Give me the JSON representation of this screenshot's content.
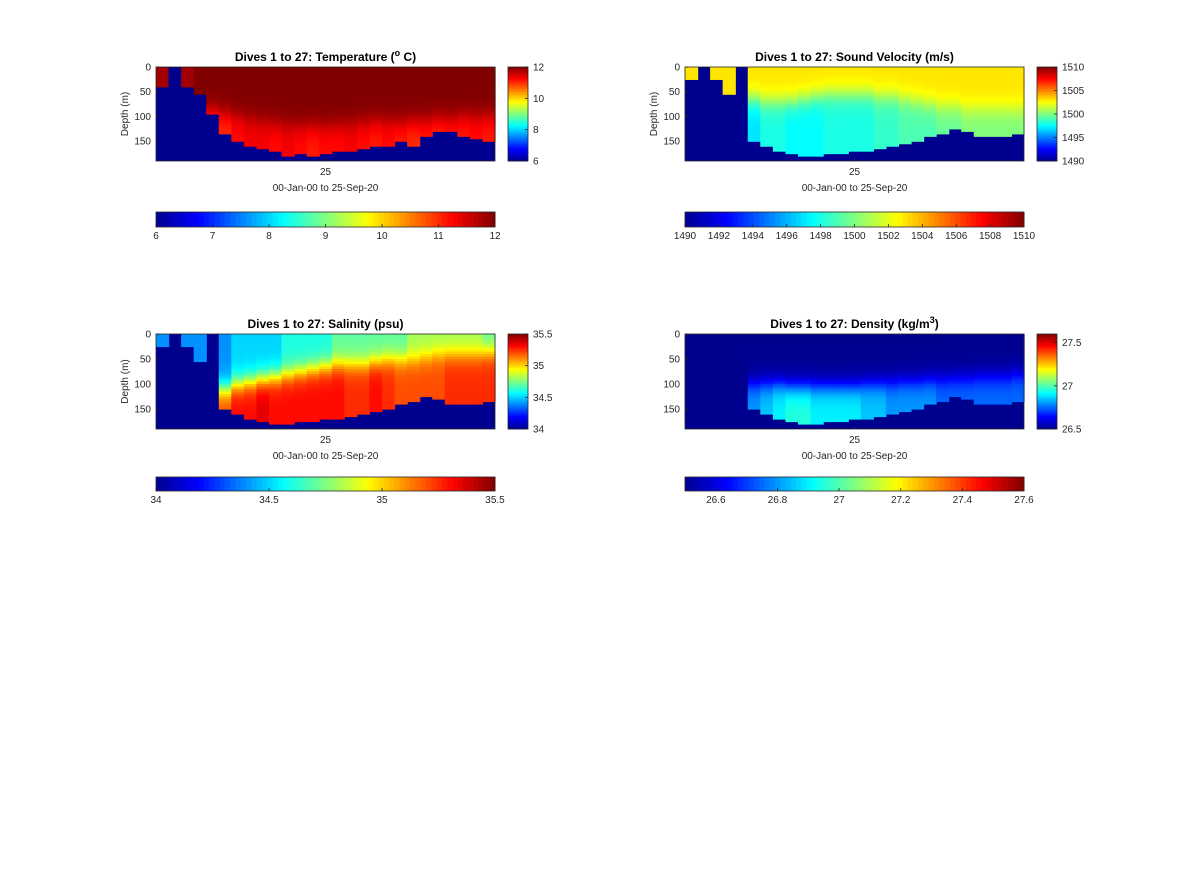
{
  "figure": {
    "x_tick_label": "25",
    "colormap": "jet",
    "colormap_colors": [
      "#00008f",
      "#0000ff",
      "#0080ff",
      "#00ffff",
      "#80ff80",
      "#ffff00",
      "#ff8000",
      "#ff0000",
      "#800000"
    ],
    "background": "#ffffff"
  },
  "chart_data": [
    {
      "id": "temperature",
      "type": "heatmap",
      "title_main": "Dives 1 to 27: Temperature (",
      "title_sup": "o",
      "title_tail": " C)",
      "xlabel": "00-Jan-00 to 25-Sep-20",
      "ylabel": "Depth (m)",
      "x_ticks": [
        25
      ],
      "y_ticks": [
        0,
        50,
        100,
        150
      ],
      "ylim": [
        0,
        190
      ],
      "colorbar_right": {
        "ticks": [
          6,
          8,
          10,
          12
        ],
        "tick_labels": [
          "6",
          "8",
          "10",
          "12"
        ],
        "range": [
          6,
          12
        ]
      },
      "colorbar_bottom": {
        "ticks": [
          6,
          7,
          8,
          9,
          10,
          11,
          12
        ],
        "tick_labels": [
          "6",
          "7",
          "8",
          "9",
          "10",
          "11",
          "12"
        ],
        "range": [
          6,
          12
        ]
      },
      "bottom_depths": [
        40,
        45,
        40,
        55,
        95,
        135,
        150,
        160,
        165,
        170,
        180,
        175,
        178,
        175,
        172,
        170,
        165,
        162,
        158,
        150,
        158,
        140,
        130,
        132,
        138,
        145,
        150
      ],
      "surface_values": [
        11.8,
        6,
        11.8,
        12,
        12,
        12,
        12,
        12,
        12,
        12,
        12,
        12,
        12,
        12,
        12,
        12,
        12,
        12,
        12,
        12,
        12,
        12,
        12,
        12,
        12,
        12,
        12
      ],
      "deep_values": [
        6,
        6,
        6,
        6,
        10.8,
        11,
        11.2,
        11.3,
        11.3,
        11.2,
        11.3,
        11.2,
        11.1,
        11.2,
        11.2,
        11.3,
        11.2,
        11.1,
        11.2,
        11.1,
        11,
        11.1,
        11,
        11.1,
        11.1,
        11.2,
        11.1
      ],
      "thermocline_depths": [
        190,
        190,
        190,
        190,
        90,
        95,
        100,
        105,
        110,
        115,
        118,
        120,
        120,
        120,
        118,
        115,
        112,
        110,
        110,
        112,
        110,
        108,
        105,
        105,
        100,
        100,
        100
      ]
    },
    {
      "id": "sound_velocity",
      "type": "heatmap",
      "title_main": "Dives 1 to 27: Sound Velocity (m/s)",
      "title_sup": "",
      "title_tail": "",
      "xlabel": "00-Jan-00 to 25-Sep-20",
      "ylabel": "Depth (m)",
      "x_ticks": [
        25
      ],
      "y_ticks": [
        0,
        50,
        100,
        150
      ],
      "ylim": [
        0,
        190
      ],
      "colorbar_right": {
        "ticks": [
          1490,
          1495,
          1500,
          1505,
          1510
        ],
        "tick_labels": [
          "1490",
          "1495",
          "1500",
          "1505",
          "1510"
        ],
        "range": [
          1490,
          1510
        ]
      },
      "colorbar_bottom": {
        "ticks": [
          1490,
          1492,
          1494,
          1496,
          1498,
          1500,
          1502,
          1504,
          1506,
          1508,
          1510
        ],
        "tick_labels": [
          "1490",
          "1492",
          "1494",
          "1496",
          "1498",
          "1500",
          "1502",
          "1504",
          "1506",
          "1508",
          "1510"
        ],
        "range": [
          1490,
          1510
        ]
      },
      "bottom_depths": [
        25,
        0,
        25,
        55,
        0,
        150,
        160,
        170,
        175,
        180,
        178,
        175,
        175,
        172,
        170,
        165,
        160,
        155,
        150,
        140,
        135,
        125,
        130,
        140,
        138,
        140,
        135
      ],
      "surface_values": [
        1503,
        1490,
        1503,
        1503,
        1490,
        1503,
        1503,
        1503,
        1503,
        1503,
        1503,
        1503,
        1503,
        1503,
        1503,
        1503,
        1503,
        1503,
        1503,
        1503,
        1503,
        1503,
        1503,
        1503,
        1503,
        1503,
        1503
      ],
      "deep_values": [
        1490,
        1490,
        1490,
        1490,
        1490,
        1497,
        1498,
        1498,
        1497.5,
        1497.5,
        1497.5,
        1498,
        1498,
        1498,
        1498,
        1498.5,
        1498.5,
        1499,
        1499,
        1499,
        1499.5,
        1499.5,
        1500,
        1500,
        1500,
        1500,
        1500
      ],
      "thermocline_depths": [
        190,
        190,
        190,
        190,
        190,
        65,
        70,
        70,
        70,
        65,
        60,
        55,
        55,
        55,
        55,
        60,
        60,
        65,
        70,
        75,
        80,
        80,
        85,
        85,
        85,
        85,
        85
      ]
    },
    {
      "id": "salinity",
      "type": "heatmap",
      "title_main": "Dives 1 to 27: Salinity (psu)",
      "title_sup": "",
      "title_tail": "",
      "xlabel": "00-Jan-00 to 25-Sep-20",
      "ylabel": "Depth (m)",
      "x_ticks": [
        25
      ],
      "y_ticks": [
        0,
        50,
        100,
        150
      ],
      "ylim": [
        0,
        190
      ],
      "colorbar_right": {
        "ticks": [
          34,
          34.5,
          35,
          35.5
        ],
        "tick_labels": [
          "34",
          "34.5",
          "35",
          "35.5"
        ],
        "range": [
          34,
          35.5
        ]
      },
      "colorbar_bottom": {
        "ticks": [
          34,
          34.5,
          35,
          35.5
        ],
        "tick_labels": [
          "34",
          "34.5",
          "35",
          "35.5"
        ],
        "range": [
          34,
          35.5
        ]
      },
      "bottom_depths": [
        25,
        0,
        25,
        55,
        0,
        150,
        160,
        170,
        175,
        180,
        178,
        175,
        175,
        172,
        170,
        165,
        160,
        155,
        150,
        140,
        135,
        125,
        130,
        140,
        138,
        140,
        135
      ],
      "surface_values": [
        34.4,
        34,
        34.4,
        34.4,
        34,
        34.4,
        34.5,
        34.5,
        34.5,
        34.5,
        34.6,
        34.6,
        34.6,
        34.6,
        34.7,
        34.7,
        34.7,
        34.7,
        34.7,
        34.7,
        34.8,
        34.8,
        34.8,
        34.8,
        34.8,
        34.8,
        34.7
      ],
      "deep_values": [
        34,
        34,
        34,
        34,
        34,
        35.2,
        35.3,
        35.3,
        35.35,
        35.3,
        35.3,
        35.3,
        35.3,
        35.3,
        35.3,
        35.25,
        35.25,
        35.3,
        35.25,
        35.2,
        35.2,
        35.2,
        35.2,
        35.25,
        35.25,
        35.25,
        35.25
      ],
      "thermocline_depths": [
        190,
        190,
        190,
        190,
        190,
        110,
        100,
        95,
        90,
        85,
        80,
        75,
        70,
        65,
        60,
        60,
        60,
        55,
        50,
        50,
        50,
        45,
        40,
        40,
        40,
        40,
        35
      ]
    },
    {
      "id": "density",
      "type": "heatmap",
      "title_main": "Dives 1 to 27: Density (kg/m",
      "title_sup": "3",
      "title_tail": ")",
      "xlabel": "00-Jan-00 to 25-Sep-20",
      "ylabel": "",
      "x_ticks": [
        25
      ],
      "y_ticks": [
        0,
        50,
        100,
        150
      ],
      "ylim": [
        0,
        190
      ],
      "colorbar_right": {
        "ticks": [
          26.5,
          27,
          27.5
        ],
        "tick_labels": [
          "26.5",
          "27",
          "27.5"
        ],
        "range": [
          26.5,
          27.6
        ]
      },
      "colorbar_bottom": {
        "ticks": [
          26.6,
          26.8,
          27,
          27.2,
          27.4,
          27.6
        ],
        "tick_labels": [
          "26.6",
          "26.8",
          "27",
          "27.2",
          "27.4",
          "27.6"
        ],
        "range": [
          26.5,
          27.6
        ]
      },
      "bottom_depths": [
        0,
        0,
        0,
        0,
        0,
        150,
        160,
        170,
        175,
        180,
        178,
        175,
        175,
        172,
        170,
        165,
        160,
        155,
        150,
        140,
        135,
        125,
        130,
        140,
        138,
        140,
        135
      ],
      "surface_values": [
        26.5,
        26.5,
        26.5,
        26.5,
        26.5,
        26.5,
        26.5,
        26.5,
        26.5,
        26.5,
        26.5,
        26.5,
        26.5,
        26.5,
        26.5,
        26.5,
        26.5,
        26.5,
        26.5,
        26.5,
        26.5,
        26.5,
        26.5,
        26.5,
        26.5,
        26.5,
        26.5
      ],
      "deep_values": [
        26.5,
        26.5,
        26.5,
        26.5,
        26.5,
        26.8,
        26.85,
        26.9,
        26.95,
        26.95,
        26.9,
        26.9,
        26.9,
        26.9,
        26.85,
        26.85,
        26.8,
        26.8,
        26.8,
        26.8,
        26.75,
        26.75,
        26.75,
        26.75,
        26.75,
        26.75,
        26.75
      ],
      "thermocline_depths": [
        190,
        190,
        190,
        190,
        190,
        100,
        100,
        100,
        105,
        105,
        105,
        105,
        105,
        105,
        100,
        100,
        98,
        95,
        95,
        92,
        90,
        88,
        88,
        85,
        85,
        85,
        80
      ]
    }
  ]
}
